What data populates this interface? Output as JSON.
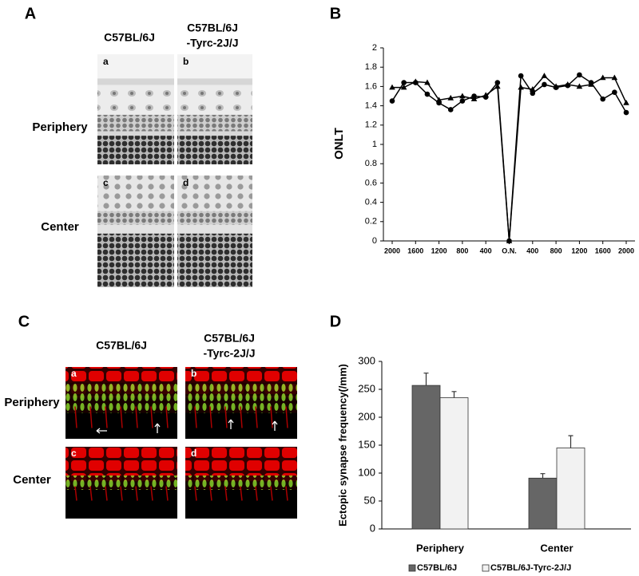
{
  "panel_a": {
    "label": "A",
    "column_1": "C57BL/6J",
    "column_2_line_1": "C57BL/6J",
    "column_2_line_2": "-Tyrc-2J/J",
    "rows": [
      "Periphery",
      "Center"
    ],
    "image_labels": [
      "a",
      "b",
      "c",
      "d"
    ]
  },
  "panel_c": {
    "label": "C",
    "column_1": "C57BL/6J",
    "column_2_line_1": "C57BL/6J",
    "column_2_line_2": "-Tyrc-2J/J",
    "rows": [
      "Periphery",
      "Center"
    ],
    "image_labels": [
      "a",
      "b",
      "c",
      "d"
    ]
  },
  "chart_data": [
    {
      "type": "line",
      "panel_label": "B",
      "y_label": "ONLT",
      "x": [
        -2000,
        -1800,
        -1600,
        -1400,
        -1200,
        -1000,
        -800,
        -600,
        -400,
        -200,
        0,
        200,
        400,
        600,
        800,
        1000,
        1200,
        1400,
        1600,
        1800,
        2000
      ],
      "xlim": [
        -2150,
        2150
      ],
      "xticks": [
        {
          "value": -2000,
          "label": "2000"
        },
        {
          "value": -1600,
          "label": "1600"
        },
        {
          "value": -1200,
          "label": "1200"
        },
        {
          "value": -800,
          "label": "800"
        },
        {
          "value": -400,
          "label": "400"
        },
        {
          "value": 0,
          "label": "O.N."
        },
        400,
        800,
        1200,
        1600,
        2000
      ],
      "ylim": [
        0,
        2
      ],
      "yticks": [
        0,
        0.2,
        0.4,
        0.6,
        0.8,
        1,
        1.2,
        1.4,
        1.6,
        1.8,
        2
      ],
      "series": [
        {
          "marker": "circle",
          "color": "#000000",
          "values": [
            1.45,
            1.64,
            1.64,
            1.52,
            1.43,
            1.36,
            1.45,
            1.5,
            1.49,
            1.64,
            0,
            1.71,
            1.53,
            1.62,
            1.59,
            1.61,
            1.72,
            1.64,
            1.47,
            1.54,
            1.33
          ]
        },
        {
          "marker": "triangle",
          "color": "#000000",
          "values": [
            1.59,
            1.59,
            1.65,
            1.64,
            1.46,
            1.48,
            1.5,
            1.47,
            1.51,
            1.6,
            0,
            1.59,
            1.57,
            1.71,
            1.6,
            1.62,
            1.6,
            1.62,
            1.69,
            1.69,
            1.43
          ]
        }
      ]
    },
    {
      "type": "bar",
      "panel_label": "D",
      "y_label": "Ectopic synapse frequency(/mm)",
      "categories": [
        "Periphery",
        "Center"
      ],
      "series": [
        {
          "name": "C57BL/6J",
          "color": "#666666",
          "values": [
            257,
            91
          ],
          "errors": [
            22,
            8
          ]
        },
        {
          "name": "C57BL/6J-Tyrc-2J/J",
          "color": "#f2f2f2",
          "values": [
            235,
            145
          ],
          "errors": [
            11,
            22
          ]
        }
      ],
      "ylim": [
        0,
        300
      ],
      "yticks": [
        0,
        50,
        100,
        150,
        200,
        250,
        300
      ],
      "legend": "bottom"
    }
  ]
}
